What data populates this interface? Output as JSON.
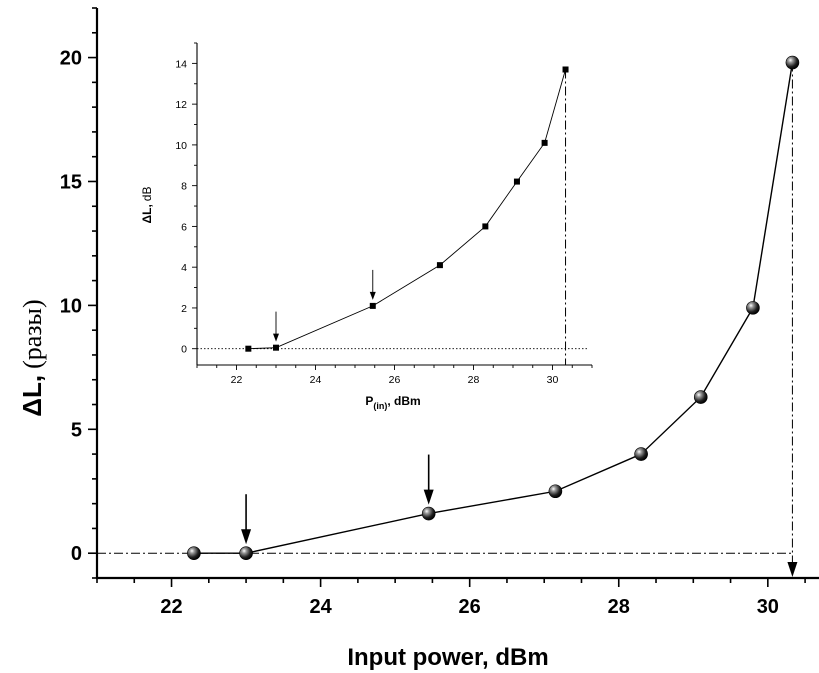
{
  "chart_data": [
    {
      "type": "line",
      "role": "main",
      "xlabel": "Input power, dBm",
      "ylabel_symbol": "ΔL,",
      "ylabel_unit": "(разы)",
      "xlim": [
        21,
        30.7
      ],
      "ylim": [
        -1,
        22
      ],
      "x_ticks": [
        22,
        24,
        26,
        28,
        30
      ],
      "y_ticks": [
        0,
        5,
        10,
        15,
        20
      ],
      "marker": "sphere",
      "x": [
        22.3,
        23.0,
        25.45,
        27.15,
        28.3,
        29.1,
        29.8,
        30.33
      ],
      "y": [
        0.0,
        0.0,
        1.6,
        2.5,
        4.0,
        6.3,
        9.9,
        19.8
      ],
      "arrows_at_x": [
        23.0,
        25.45
      ],
      "reference_lines": {
        "horizontal_y": 0,
        "vertical_x": 30.33
      },
      "grid": false,
      "legend": "none"
    },
    {
      "type": "line",
      "role": "inset",
      "xlabel_main": "P",
      "xlabel_sub": "(in)",
      "xlabel_unit": ", dBm",
      "ylabel_symbol": "ΔL,",
      "ylabel_unit": "dB",
      "xlim": [
        21,
        31
      ],
      "ylim": [
        -0.8,
        15
      ],
      "x_ticks": [
        22,
        24,
        26,
        28,
        30
      ],
      "y_ticks": [
        0,
        2,
        4,
        6,
        8,
        10,
        12,
        14
      ],
      "marker": "square",
      "x": [
        22.3,
        23.0,
        25.45,
        27.15,
        28.3,
        29.1,
        29.8,
        30.33
      ],
      "y": [
        0.0,
        0.05,
        2.1,
        4.1,
        6.0,
        8.2,
        10.1,
        13.7
      ],
      "arrows_at_x": [
        23.0,
        25.45
      ],
      "reference_lines": {
        "horizontal_y": 0,
        "vertical_x": 30.33
      },
      "grid": false,
      "legend": "none"
    }
  ]
}
